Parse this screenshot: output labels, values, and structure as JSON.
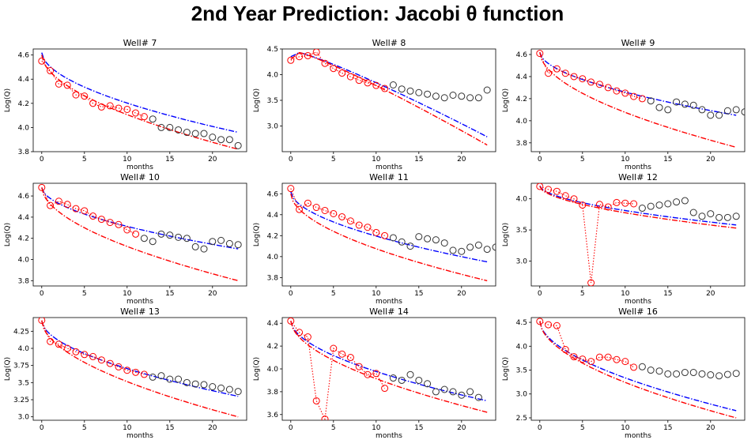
{
  "page_title": "2nd Year Prediction: Jacobi θ function",
  "styles": {
    "observed_color": "#ff0000",
    "holdout_color": "#333333",
    "fit_red_color": "#ff0000",
    "fit_blue_color": "#0000ff"
  },
  "chart_data": [
    {
      "type": "line",
      "title": "Well# 7",
      "xlabel": "months",
      "ylabel": "Log(Q)",
      "xlim": [
        -1,
        24
      ],
      "ylim": [
        3.8,
        4.65
      ],
      "xticks": [
        0,
        5,
        10,
        15,
        20
      ],
      "yticks": [
        3.8,
        4.0,
        4.2,
        4.4,
        4.6
      ],
      "obs": [
        4.55,
        4.47,
        4.36,
        4.35,
        4.27,
        4.26,
        4.2,
        4.17,
        4.18,
        4.16,
        4.15,
        4.12,
        4.09
      ],
      "holdout": [
        4.07,
        4.0,
        4.0,
        3.98,
        3.96,
        3.95,
        3.95,
        3.92,
        3.9,
        3.9,
        3.85
      ],
      "red_start": 4.6,
      "red_end": 3.82,
      "blue_start": 4.62,
      "blue_end": 3.96
    },
    {
      "type": "line",
      "title": "Well# 8",
      "xlabel": "months",
      "ylabel": "Log(Q)",
      "xlim": [
        -1,
        24
      ],
      "ylim": [
        2.5,
        4.5
      ],
      "xticks": [
        0,
        5,
        10,
        15,
        20
      ],
      "yticks": [
        3.0,
        3.5,
        4.0,
        4.5
      ],
      "obs": [
        4.28,
        4.35,
        4.37,
        4.44,
        4.22,
        4.12,
        4.03,
        3.96,
        3.89,
        3.84,
        3.79,
        3.73
      ],
      "holdout": [
        3.8,
        3.72,
        3.68,
        3.65,
        3.62,
        3.58,
        3.55,
        3.6,
        3.58,
        3.55,
        3.55,
        3.7
      ],
      "red_start": 4.3,
      "red_peak": 4.43,
      "red_end": 2.63,
      "blue_start": 4.35,
      "blue_peak": 4.43,
      "blue_end": 2.79
    },
    {
      "type": "line",
      "title": "Well# 9",
      "xlabel": "months",
      "ylabel": "Log(Q)",
      "xlim": [
        -1,
        24
      ],
      "ylim": [
        3.72,
        4.65
      ],
      "xticks": [
        0,
        5,
        10,
        15,
        20
      ],
      "yticks": [
        3.8,
        4.0,
        4.2,
        4.4,
        4.6
      ],
      "obs": [
        4.61,
        4.43,
        4.47,
        4.43,
        4.4,
        4.38,
        4.35,
        4.33,
        4.3,
        4.27,
        4.25,
        4.22,
        4.2
      ],
      "holdout": [
        4.18,
        4.12,
        4.1,
        4.17,
        4.15,
        4.14,
        4.1,
        4.05,
        4.05,
        4.09,
        4.1,
        4.08,
        4.07
      ],
      "red_start": 4.62,
      "red_end": 3.76,
      "blue_start": 4.62,
      "blue_end": 4.05
    },
    {
      "type": "line",
      "title": "Well# 10",
      "xlabel": "months",
      "ylabel": "Log(Q)",
      "xlim": [
        -1,
        24
      ],
      "ylim": [
        3.75,
        4.72
      ],
      "xticks": [
        0,
        5,
        10,
        15,
        20
      ],
      "yticks": [
        3.8,
        4.0,
        4.2,
        4.4,
        4.6
      ],
      "obs": [
        4.68,
        4.51,
        4.55,
        4.52,
        4.48,
        4.46,
        4.41,
        4.38,
        4.35,
        4.33,
        4.28,
        4.24
      ],
      "holdout": [
        4.2,
        4.17,
        4.24,
        4.23,
        4.21,
        4.2,
        4.12,
        4.1,
        4.17,
        4.18,
        4.15,
        4.14
      ],
      "red_start": 4.68,
      "red_end": 3.8,
      "blue_start": 4.68,
      "blue_end": 4.1
    },
    {
      "type": "line",
      "title": "Well# 11",
      "xlabel": "months",
      "ylabel": "Log(Q)",
      "xlim": [
        -1,
        24
      ],
      "ylim": [
        3.72,
        4.7
      ],
      "xticks": [
        0,
        5,
        10,
        15,
        20
      ],
      "yticks": [
        3.8,
        4.0,
        4.2,
        4.4,
        4.6
      ],
      "obs": [
        4.65,
        4.45,
        4.51,
        4.47,
        4.44,
        4.41,
        4.38,
        4.34,
        4.3,
        4.28,
        4.23,
        4.2
      ],
      "holdout": [
        4.18,
        4.14,
        4.1,
        4.19,
        4.17,
        4.16,
        4.13,
        4.06,
        4.05,
        4.09,
        4.11,
        4.07,
        4.09
      ],
      "red_start": 4.6,
      "red_end": 3.77,
      "blue_start": 4.62,
      "blue_end": 3.95
    },
    {
      "type": "line",
      "title": "Well# 12",
      "xlabel": "months",
      "ylabel": "Log(Q)",
      "xlim": [
        -1,
        24
      ],
      "ylim": [
        2.6,
        4.25
      ],
      "xticks": [
        0,
        5,
        10,
        15,
        20
      ],
      "yticks": [
        3.0,
        3.5,
        4.0
      ],
      "obs": [
        4.2,
        4.15,
        4.12,
        4.05,
        4.0,
        3.9,
        2.65,
        3.91,
        3.87,
        3.94,
        3.93,
        3.92
      ],
      "holdout": [
        3.85,
        3.88,
        3.9,
        3.92,
        3.95,
        3.97,
        3.78,
        3.72,
        3.76,
        3.7,
        3.7,
        3.72
      ],
      "red_start": 4.2,
      "red_end": 3.53,
      "blue_start": 4.21,
      "blue_end": 3.58
    },
    {
      "type": "line",
      "title": "Well# 13",
      "xlabel": "months",
      "ylabel": "Log(Q)",
      "xlim": [
        -1,
        24
      ],
      "ylim": [
        2.95,
        4.45
      ],
      "xticks": [
        0,
        5,
        10,
        15,
        20
      ],
      "yticks": [
        3.0,
        3.25,
        3.5,
        3.75,
        4.0,
        4.25
      ],
      "obs": [
        4.41,
        4.1,
        4.06,
        4.0,
        3.95,
        3.91,
        3.88,
        3.83,
        3.78,
        3.73,
        3.68,
        3.65,
        3.62
      ],
      "holdout": [
        3.58,
        3.6,
        3.55,
        3.55,
        3.5,
        3.48,
        3.47,
        3.44,
        3.42,
        3.4,
        3.37
      ],
      "red_start": 4.4,
      "red_end": 3.0,
      "blue_start": 4.4,
      "blue_end": 3.3
    },
    {
      "type": "line",
      "title": "Well# 14",
      "xlabel": "months",
      "ylabel": "Log(Q)",
      "xlim": [
        -1,
        24
      ],
      "ylim": [
        3.55,
        4.45
      ],
      "xticks": [
        0,
        5,
        10,
        15,
        20
      ],
      "yticks": [
        3.6,
        3.8,
        4.0,
        4.2,
        4.4
      ],
      "obs": [
        4.42,
        4.32,
        4.28,
        3.72,
        3.56,
        4.18,
        4.13,
        4.1,
        4.02,
        3.95,
        3.96,
        3.83
      ],
      "holdout": [
        3.92,
        3.9,
        3.95,
        3.9,
        3.87,
        3.8,
        3.82,
        3.8,
        3.77,
        3.8,
        3.75
      ],
      "red_start": 4.42,
      "red_end": 3.62,
      "blue_start": 4.42,
      "blue_end": 3.72
    },
    {
      "type": "line",
      "title": "Well# 16",
      "xlabel": "months",
      "ylabel": "Log(Q)",
      "xlim": [
        -1,
        24
      ],
      "ylim": [
        2.45,
        4.6
      ],
      "xticks": [
        0,
        5,
        10,
        15,
        20
      ],
      "yticks": [
        2.5,
        3.0,
        3.5,
        4.0,
        4.5
      ],
      "obs": [
        4.52,
        4.45,
        4.43,
        3.93,
        3.78,
        3.73,
        3.68,
        3.77,
        3.77,
        3.72,
        3.68,
        3.56
      ],
      "holdout": [
        3.57,
        3.5,
        3.48,
        3.42,
        3.42,
        3.45,
        3.45,
        3.42,
        3.4,
        3.38,
        3.41,
        3.43
      ],
      "red_start": 4.52,
      "red_end": 2.5,
      "blue_start": 4.52,
      "blue_end": 2.65
    }
  ]
}
